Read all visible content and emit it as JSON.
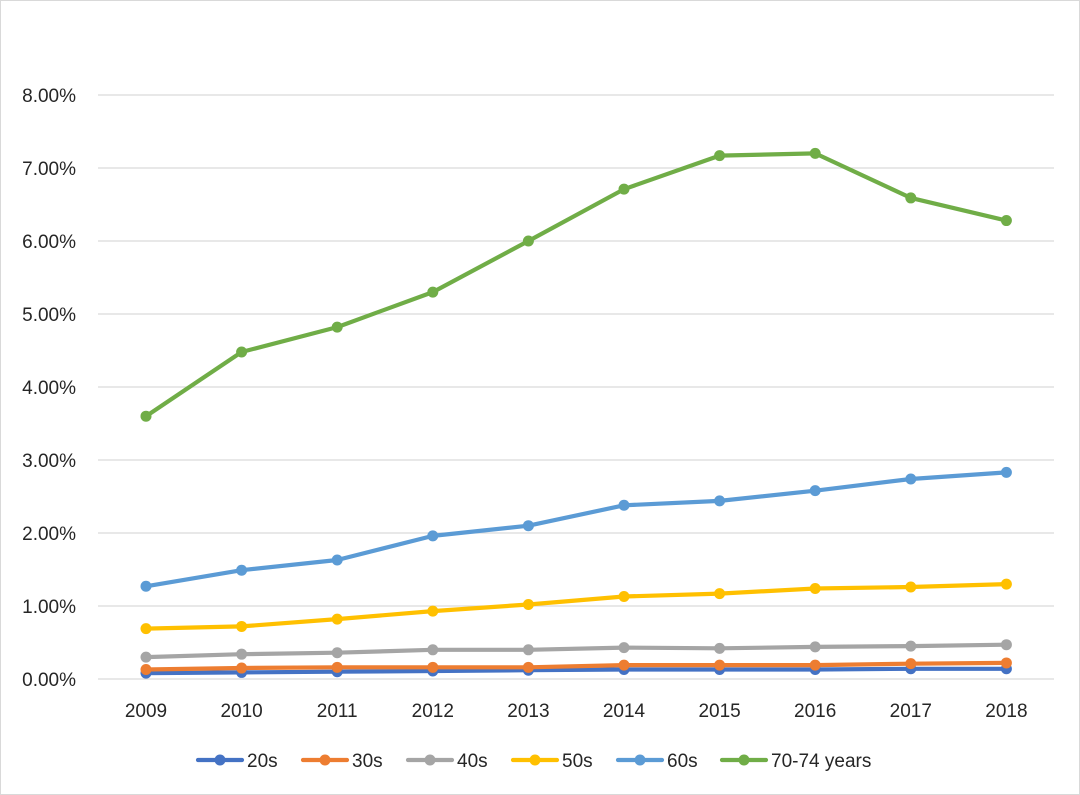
{
  "chart_data": {
    "type": "line",
    "title": "",
    "xlabel": "",
    "ylabel": "",
    "categories": [
      "2009",
      "2010",
      "2011",
      "2012",
      "2013",
      "2014",
      "2015",
      "2016",
      "2017",
      "2018"
    ],
    "y_tick_labels": [
      "0.00%",
      "1.00%",
      "2.00%",
      "3.00%",
      "4.00%",
      "5.00%",
      "6.00%",
      "7.00%",
      "8.00%"
    ],
    "ylim": [
      0,
      8
    ],
    "y_unit": "%",
    "grid": "horizontal",
    "legend_position": "bottom",
    "series": [
      {
        "name": "20s",
        "color": "#4472c4",
        "values": [
          0.08,
          0.09,
          0.1,
          0.11,
          0.12,
          0.13,
          0.13,
          0.13,
          0.14,
          0.14
        ]
      },
      {
        "name": "30s",
        "color": "#ed7d31",
        "values": [
          0.13,
          0.15,
          0.16,
          0.16,
          0.16,
          0.19,
          0.19,
          0.19,
          0.21,
          0.22
        ]
      },
      {
        "name": "40s",
        "color": "#a5a5a5",
        "values": [
          0.3,
          0.34,
          0.36,
          0.4,
          0.4,
          0.43,
          0.42,
          0.44,
          0.45,
          0.47
        ]
      },
      {
        "name": "50s",
        "color": "#ffc000",
        "values": [
          0.69,
          0.72,
          0.82,
          0.93,
          1.02,
          1.13,
          1.17,
          1.24,
          1.26,
          1.3
        ]
      },
      {
        "name": "60s",
        "color": "#5b9bd5",
        "values": [
          1.27,
          1.49,
          1.63,
          1.96,
          2.1,
          2.38,
          2.44,
          2.58,
          2.74,
          2.83
        ]
      },
      {
        "name": "70-74 years",
        "color": "#70ad47",
        "values": [
          3.6,
          4.48,
          4.82,
          5.3,
          6.0,
          6.71,
          7.17,
          7.2,
          6.59,
          6.28
        ]
      }
    ]
  }
}
